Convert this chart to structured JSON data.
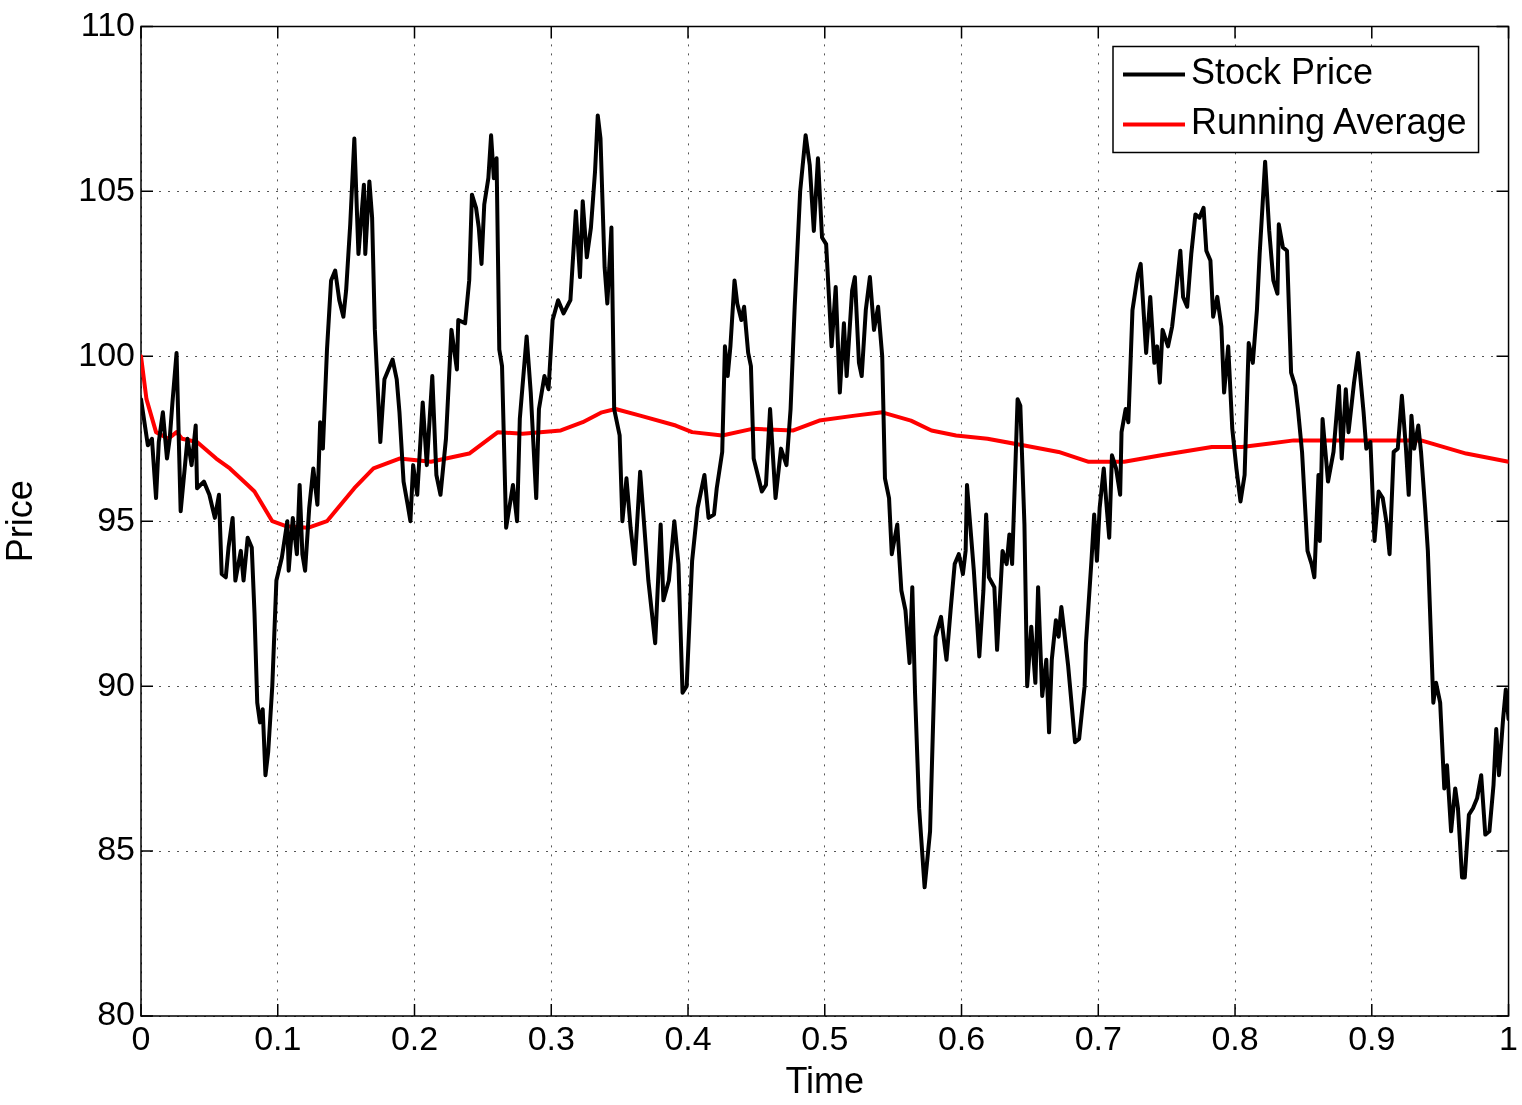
{
  "chart_data": {
    "type": "line",
    "xlabel": "Time",
    "ylabel": "Price",
    "xlim": [
      0,
      1
    ],
    "xticks": [
      0,
      0.1,
      0.2,
      0.3,
      0.4,
      0.5,
      0.6,
      0.7,
      0.8,
      0.9,
      1
    ],
    "ylim": [
      80,
      110
    ],
    "yticks": [
      80,
      85,
      90,
      95,
      100,
      105,
      110
    ],
    "grid": true,
    "legend": "top right",
    "marker": "none",
    "line_style": "solid",
    "series": [
      {
        "name": "Stock Price",
        "color": "#000000",
        "x": [
          0,
          0.005,
          0.008,
          0.011,
          0.013,
          0.016,
          0.019,
          0.021,
          0.023,
          0.026,
          0.029,
          0.034,
          0.037,
          0.04,
          0.041,
          0.046,
          0.05,
          0.054,
          0.057,
          0.059,
          0.062,
          0.064,
          0.067,
          0.069,
          0.073,
          0.075,
          0.078,
          0.081,
          0.083,
          0.085,
          0.087,
          0.089,
          0.091,
          0.093,
          0.096,
          0.099,
          0.103,
          0.107,
          0.108,
          0.111,
          0.114,
          0.116,
          0.118,
          0.12,
          0.123,
          0.126,
          0.129,
          0.131,
          0.133,
          0.136,
          0.139,
          0.142,
          0.145,
          0.148,
          0.15,
          0.153,
          0.156,
          0.159,
          0.163,
          0.164,
          0.167,
          0.169,
          0.171,
          0.175,
          0.178,
          0.184,
          0.187,
          0.189,
          0.192,
          0.195,
          0.197,
          0.199,
          0.202,
          0.206,
          0.209,
          0.213,
          0.216,
          0.219,
          0.223,
          0.227,
          0.231,
          0.232,
          0.237,
          0.24,
          0.242,
          0.245,
          0.247,
          0.249,
          0.251,
          0.254,
          0.256,
          0.258,
          0.26,
          0.262,
          0.264,
          0.267,
          0.272,
          0.275,
          0.277,
          0.282,
          0.285,
          0.289,
          0.291,
          0.295,
          0.298,
          0.301,
          0.305,
          0.309,
          0.314,
          0.318,
          0.321,
          0.323,
          0.326,
          0.329,
          0.332,
          0.334,
          0.336,
          0.339,
          0.341,
          0.344,
          0.346,
          0.35,
          0.352,
          0.355,
          0.358,
          0.361,
          0.365,
          0.371,
          0.376,
          0.38,
          0.382,
          0.386,
          0.39,
          0.393,
          0.396,
          0.399,
          0.403,
          0.407,
          0.412,
          0.415,
          0.419,
          0.421,
          0.425,
          0.427,
          0.429,
          0.431,
          0.434,
          0.436,
          0.439,
          0.441,
          0.444,
          0.446,
          0.448,
          0.454,
          0.457,
          0.46,
          0.464,
          0.468,
          0.472,
          0.475,
          0.478,
          0.482,
          0.486,
          0.489,
          0.492,
          0.495,
          0.498,
          0.501,
          0.505,
          0.508,
          0.511,
          0.514,
          0.516,
          0.52,
          0.522,
          0.525,
          0.527,
          0.53,
          0.533,
          0.536,
          0.539,
          0.542,
          0.544,
          0.547,
          0.549,
          0.553,
          0.556,
          0.559,
          0.562,
          0.564,
          0.566,
          0.569,
          0.573,
          0.577,
          0.581,
          0.585,
          0.589,
          0.592,
          0.595,
          0.598,
          0.601,
          0.603,
          0.604,
          0.609,
          0.613,
          0.616,
          0.618,
          0.62,
          0.624,
          0.626,
          0.63,
          0.633,
          0.635,
          0.637,
          0.641,
          0.643,
          0.646,
          0.648,
          0.651,
          0.654,
          0.656,
          0.659,
          0.662,
          0.664,
          0.666,
          0.669,
          0.671,
          0.673,
          0.675,
          0.678,
          0.683,
          0.686,
          0.69,
          0.691,
          0.695,
          0.697,
          0.699,
          0.701,
          0.704,
          0.706,
          0.708,
          0.71,
          0.713,
          0.716,
          0.717,
          0.72,
          0.722,
          0.725,
          0.729,
          0.731,
          0.735,
          0.738,
          0.741,
          0.743,
          0.745,
          0.747,
          0.751,
          0.754,
          0.757,
          0.76,
          0.762,
          0.765,
          0.768,
          0.771,
          0.774,
          0.777,
          0.779,
          0.782,
          0.784,
          0.787,
          0.79,
          0.792,
          0.795,
          0.798,
          0.801,
          0.804,
          0.807,
          0.81,
          0.813,
          0.816,
          0.818,
          0.822,
          0.825,
          0.828,
          0.831,
          0.832,
          0.835,
          0.838,
          0.841,
          0.844,
          0.846,
          0.849,
          0.853,
          0.856,
          0.858,
          0.861,
          0.862,
          0.864,
          0.868,
          0.872,
          0.876,
          0.878,
          0.881,
          0.883,
          0.887,
          0.89,
          0.894,
          0.896,
          0.899,
          0.902,
          0.905,
          0.908,
          0.911,
          0.913,
          0.916,
          0.919,
          0.922,
          0.925,
          0.927,
          0.929,
          0.931,
          0.934,
          0.936,
          0.939,
          0.941,
          0.945,
          0.947,
          0.95,
          0.953,
          0.955,
          0.958,
          0.961,
          0.963,
          0.966,
          0.968,
          0.971,
          0.974,
          0.977,
          0.98,
          0.983,
          0.986,
          0.989,
          0.991,
          0.993,
          0.996,
          0.998,
          1
        ],
        "values": [
          98.7,
          97.3,
          97.5,
          95.7,
          97.4,
          98.3,
          96.9,
          97.5,
          98.6,
          100.1,
          95.3,
          97.5,
          96.7,
          97.9,
          96.0,
          96.2,
          95.8,
          95.1,
          95.8,
          93.4,
          93.3,
          94.2,
          95.1,
          93.2,
          94.1,
          93.2,
          94.5,
          94.2,
          92.2,
          89.5,
          88.9,
          89.3,
          87.3,
          88.0,
          90.0,
          93.2,
          93.9,
          95.0,
          93.5,
          95.1,
          94.0,
          96.1,
          94.0,
          93.5,
          95.4,
          96.6,
          95.5,
          98.0,
          97.2,
          100.2,
          102.3,
          102.6,
          101.7,
          101.2,
          102.0,
          104.0,
          106.6,
          103.1,
          105.2,
          103.1,
          105.3,
          104.2,
          100.8,
          97.4,
          99.3,
          99.9,
          99.3,
          98.3,
          96.2,
          95.5,
          95.0,
          96.7,
          95.8,
          98.6,
          96.7,
          99.4,
          96.4,
          95.8,
          97.5,
          100.8,
          99.6,
          101.1,
          101.0,
          102.3,
          104.9,
          104.5,
          103.9,
          102.8,
          104.6,
          105.4,
          106.7,
          105.4,
          106.0,
          100.2,
          99.7,
          94.8,
          96.1,
          95.0,
          98.1,
          100.6,
          98.9,
          95.7,
          98.4,
          99.4,
          99.0,
          101.1,
          101.7,
          101.3,
          101.7,
          104.4,
          102.4,
          104.7,
          103.0,
          103.9,
          105.6,
          107.3,
          106.6,
          102.7,
          101.6,
          103.9,
          98.4,
          97.6,
          95.0,
          96.3,
          94.8,
          93.7,
          96.5,
          93.2,
          91.3,
          94.9,
          92.6,
          93.2,
          95.0,
          93.7,
          89.8,
          90.0,
          93.8,
          95.4,
          96.4,
          95.1,
          95.2,
          96.0,
          97.1,
          100.3,
          99.4,
          100.3,
          102.3,
          101.6,
          101.1,
          101.5,
          100.1,
          99.7,
          96.9,
          95.9,
          96.1,
          98.4,
          95.7,
          97.2,
          96.7,
          98.4,
          101.5,
          105.0,
          106.7,
          105.8,
          103.8,
          106.0,
          103.6,
          103.4,
          100.3,
          102.1,
          98.9,
          101.0,
          99.4,
          102.0,
          102.4,
          99.8,
          99.4,
          101.4,
          102.4,
          100.8,
          101.5,
          100.0,
          96.3,
          95.7,
          94.0,
          94.9,
          92.9,
          92.3,
          90.7,
          93.0,
          89.8,
          86.3,
          83.9,
          85.6,
          91.5,
          92.1,
          90.8,
          92.3,
          93.7,
          94.0,
          93.4,
          94.1,
          96.1,
          93.5,
          90.9,
          92.9,
          95.2,
          93.3,
          93.0,
          91.1,
          94.1,
          93.7,
          94.6,
          93.7,
          98.7,
          98.5,
          94.9,
          90.0,
          91.8,
          90.1,
          93.0,
          89.7,
          90.8,
          88.6,
          90.8,
          92.0,
          91.5,
          92.4,
          91.7,
          90.6,
          88.3,
          88.4,
          90.0,
          91.3,
          93.8,
          95.2,
          93.8,
          95.4,
          96.6,
          95.5,
          94.5,
          97.0,
          96.6,
          95.8,
          97.7,
          98.4,
          98.0,
          101.4,
          102.5,
          102.8,
          100.1,
          101.8,
          99.8,
          100.3,
          99.2,
          100.8,
          100.3,
          100.9,
          102.0,
          103.2,
          101.8,
          101.5,
          103.1,
          104.3,
          104.2,
          104.5,
          103.2,
          102.9,
          101.2,
          101.8,
          100.9,
          98.9,
          100.3,
          97.8,
          96.6,
          95.6,
          96.4,
          100.4,
          99.8,
          101.4,
          103.1,
          105.9,
          103.8,
          102.3,
          101.9,
          104.0,
          103.3,
          103.2,
          99.5,
          99.1,
          98.4,
          97.1,
          94.1,
          93.7,
          93.3,
          96.4,
          94.4,
          98.1,
          96.2,
          97.1,
          99.1,
          96.9,
          99.0,
          97.7,
          99.2,
          100.1,
          98.3,
          97.2,
          97.4,
          94.4,
          95.9,
          95.7,
          94.9,
          94.0,
          97.1,
          97.2,
          98.8,
          97.2,
          95.8,
          98.2,
          97.2,
          97.9,
          97.1,
          95.4,
          94.1,
          89.5,
          90.1,
          89.5,
          86.9,
          87.6,
          85.6,
          86.9,
          86.3,
          84.2,
          84.2,
          86.1,
          86.3,
          86.6,
          87.3,
          85.5,
          85.6,
          87.0,
          88.7,
          87.3,
          89.0,
          89.9,
          89.0
        ]
      },
      {
        "name": "Running Average",
        "color": "#ff0000",
        "x": [
          0,
          0.004,
          0.011,
          0.02,
          0.026,
          0.03,
          0.041,
          0.055,
          0.065,
          0.078,
          0.083,
          0.096,
          0.106,
          0.122,
          0.136,
          0.156,
          0.17,
          0.189,
          0.212,
          0.24,
          0.261,
          0.279,
          0.307,
          0.323,
          0.337,
          0.347,
          0.365,
          0.391,
          0.403,
          0.425,
          0.447,
          0.477,
          0.496,
          0.522,
          0.542,
          0.563,
          0.578,
          0.596,
          0.619,
          0.645,
          0.671,
          0.693,
          0.719,
          0.746,
          0.783,
          0.805,
          0.843,
          0.869,
          0.899,
          0.936,
          0.969,
          1
        ],
        "values": [
          100.0,
          98.7,
          97.7,
          97.5,
          97.7,
          97.5,
          97.4,
          96.9,
          96.6,
          96.1,
          95.9,
          95.0,
          94.85,
          94.8,
          95.0,
          96.0,
          96.6,
          96.9,
          96.8,
          97.05,
          97.7,
          97.65,
          97.75,
          98.0,
          98.3,
          98.4,
          98.2,
          97.9,
          97.7,
          97.6,
          97.8,
          97.75,
          98.05,
          98.2,
          98.3,
          98.05,
          97.75,
          97.6,
          97.5,
          97.3,
          97.1,
          96.8,
          96.8,
          97.0,
          97.25,
          97.25,
          97.45,
          97.45,
          97.45,
          97.45,
          97.05,
          96.8
        ]
      }
    ]
  }
}
